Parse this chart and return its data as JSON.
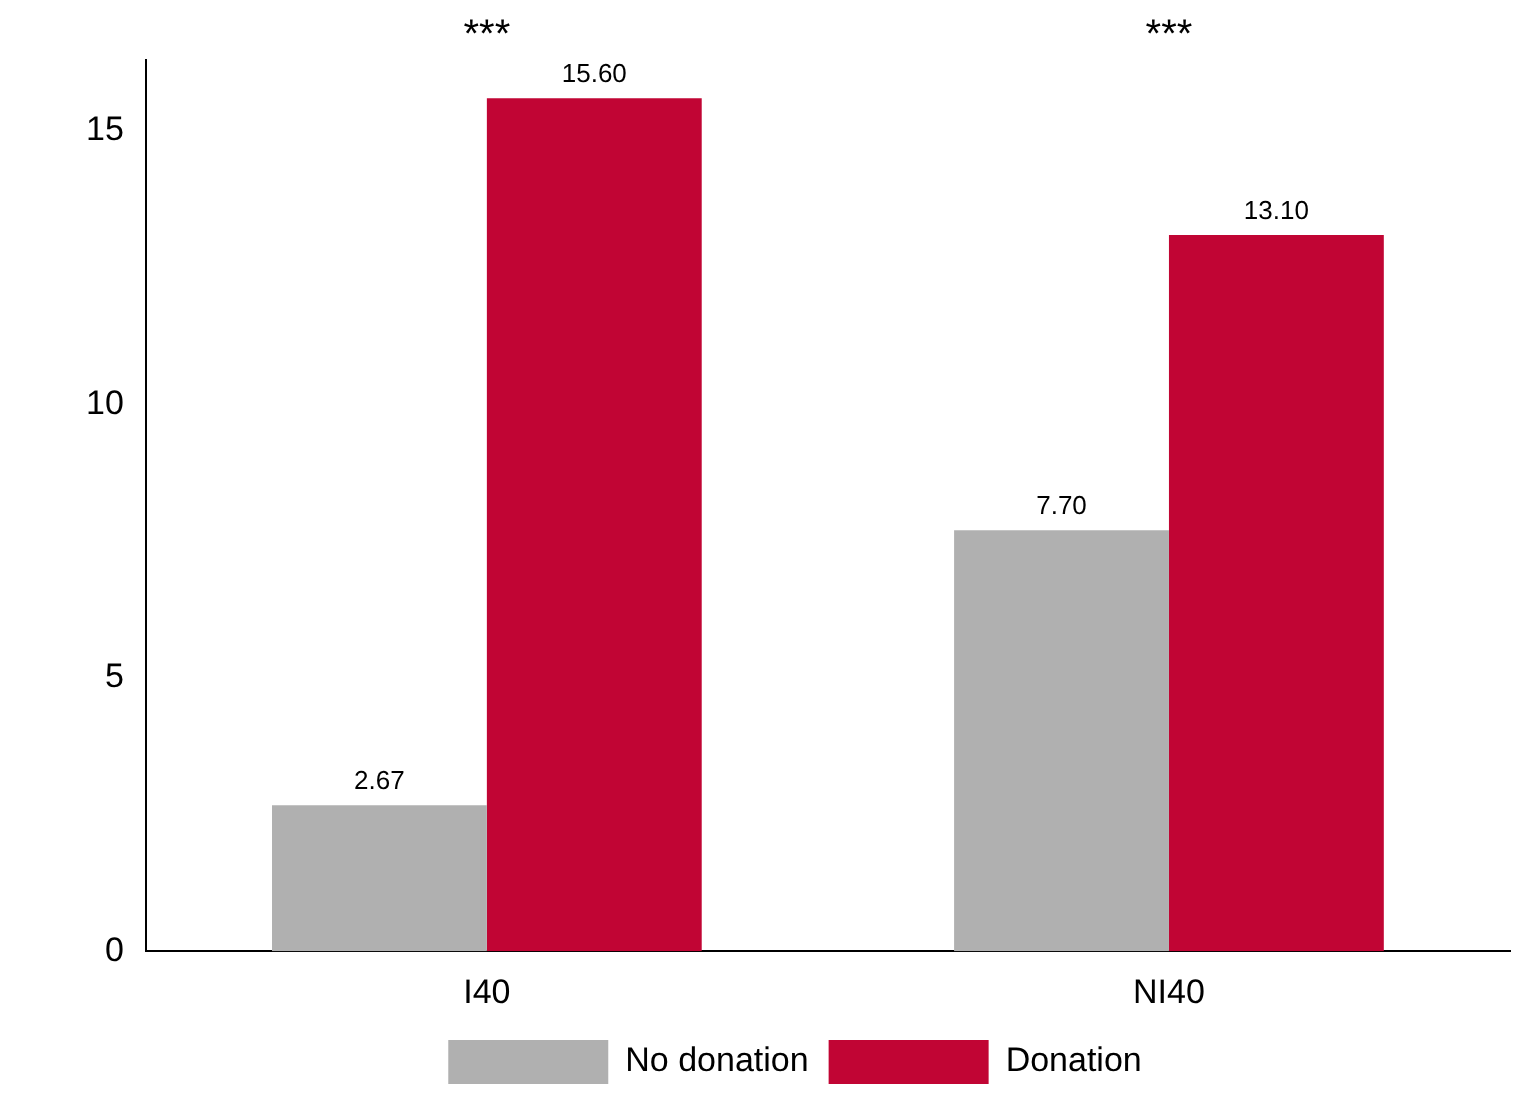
{
  "chart_data": {
    "type": "bar",
    "categories": [
      "I40",
      "NI40"
    ],
    "series": [
      {
        "name": "No donation",
        "color": "#b0b0b0",
        "values": [
          2.67,
          7.7
        ],
        "value_labels": [
          "2.67",
          "7.70"
        ]
      },
      {
        "name": "Donation",
        "color": "#c10534",
        "values": [
          15.6,
          13.1
        ],
        "value_labels": [
          "15.60",
          "13.10"
        ]
      }
    ],
    "ylim": [
      0,
      16.3
    ],
    "yticks": [
      0,
      5,
      10,
      15
    ],
    "grid": false,
    "legend": "bottom",
    "annotations": [
      "***",
      "***"
    ]
  }
}
